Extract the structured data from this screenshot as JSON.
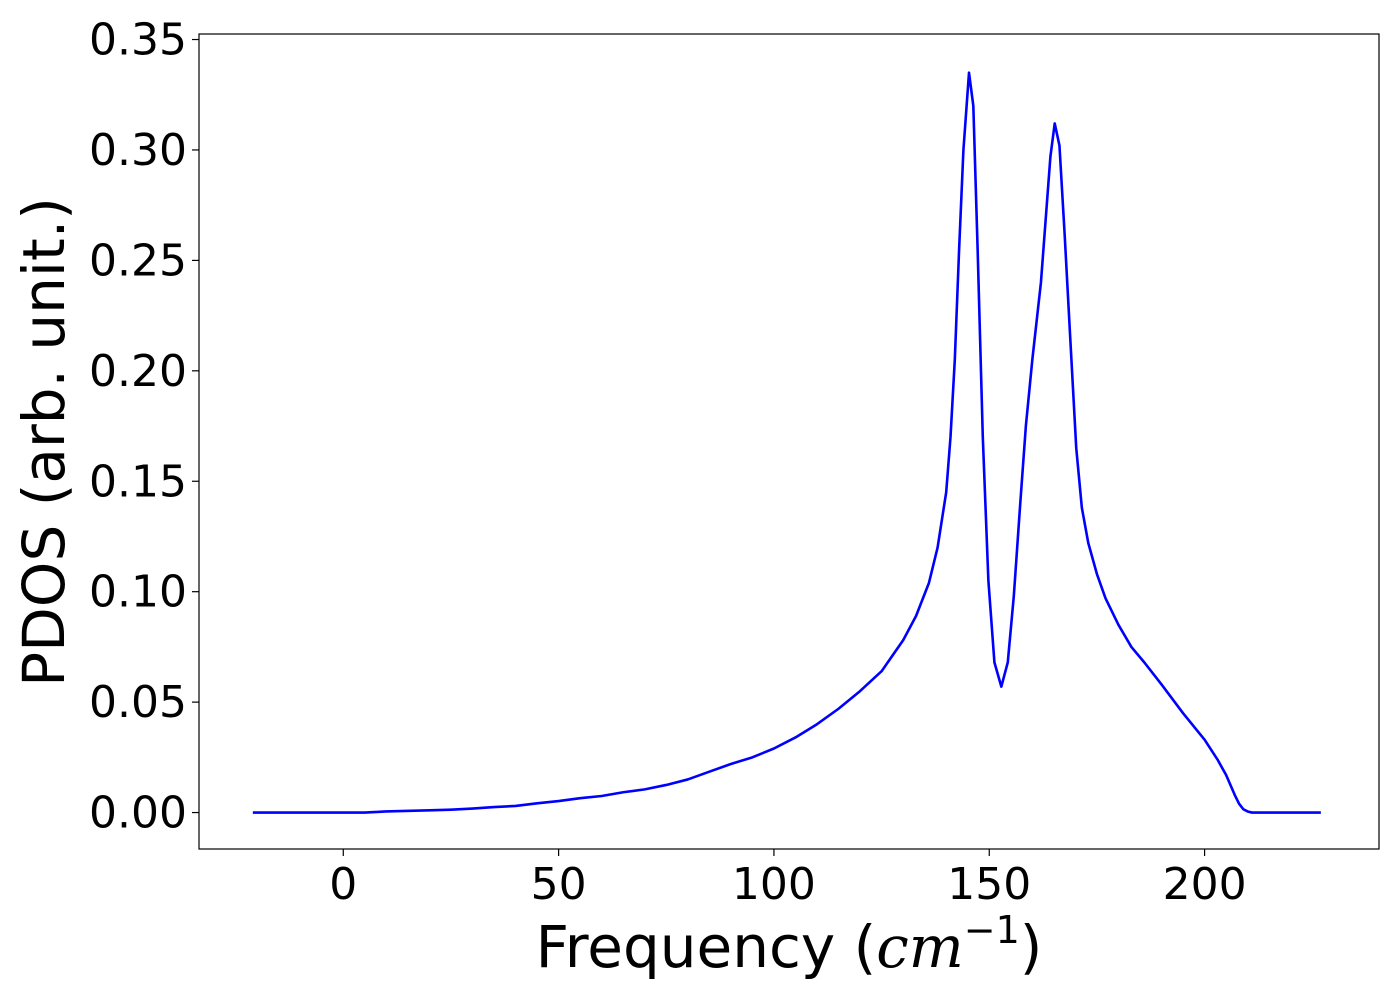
{
  "chart_data": {
    "type": "line",
    "xlabel": "Frequency (cm⁻¹)",
    "xlabel_parts": {
      "prefix": "Frequency (",
      "unit": "cm",
      "exponent": "−1",
      "suffix": ")"
    },
    "ylabel": "PDOS (arb. unit.)",
    "xlim": [
      -33.5,
      240.5
    ],
    "ylim": [
      -0.0165,
      0.3525
    ],
    "xticks": [
      0,
      50,
      100,
      150,
      200
    ],
    "xtick_labels": [
      "0",
      "50",
      "100",
      "150",
      "200"
    ],
    "yticks": [
      0.0,
      0.05,
      0.1,
      0.15,
      0.2,
      0.25,
      0.3,
      0.35
    ],
    "ytick_labels": [
      "0.00",
      "0.05",
      "0.10",
      "0.15",
      "0.20",
      "0.25",
      "0.30",
      "0.35"
    ],
    "grid": false,
    "line_color": "#0000ff",
    "series": [
      {
        "x": [
          -21,
          -10,
          0,
          5,
          10,
          20,
          25,
          30,
          35,
          40,
          45,
          50,
          55,
          60,
          65,
          70,
          75,
          80,
          85,
          90,
          95,
          100,
          105,
          110,
          115,
          120,
          125,
          130,
          133,
          136,
          138,
          140,
          141,
          142,
          143,
          144,
          145.3,
          146.3,
          147.3,
          148.5,
          149.8,
          151.2,
          152.8,
          154.3,
          155.7,
          157.2,
          158.5,
          160,
          162,
          164.2,
          165.2,
          166.3,
          167.5,
          168.8,
          170.2,
          171.5,
          173,
          175,
          177,
          180,
          183,
          186,
          190,
          195,
          200,
          203,
          205,
          207,
          208,
          209,
          210,
          211,
          212,
          215,
          220,
          227
        ],
        "y": [
          0.0,
          0.0,
          0.0,
          0.0,
          0.0005,
          0.001,
          0.0013,
          0.0018,
          0.0025,
          0.003,
          0.0042,
          0.0052,
          0.0065,
          0.0075,
          0.0092,
          0.0105,
          0.0125,
          0.015,
          0.0185,
          0.022,
          0.025,
          0.029,
          0.034,
          0.04,
          0.047,
          0.055,
          0.064,
          0.078,
          0.089,
          0.104,
          0.12,
          0.145,
          0.17,
          0.205,
          0.255,
          0.3,
          0.335,
          0.32,
          0.255,
          0.17,
          0.105,
          0.068,
          0.057,
          0.068,
          0.098,
          0.14,
          0.175,
          0.205,
          0.24,
          0.297,
          0.312,
          0.302,
          0.262,
          0.215,
          0.165,
          0.138,
          0.122,
          0.108,
          0.097,
          0.085,
          0.075,
          0.068,
          0.058,
          0.045,
          0.033,
          0.024,
          0.017,
          0.008,
          0.004,
          0.0015,
          0.0005,
          0.0,
          0.0,
          0.0,
          0.0,
          0.0
        ]
      }
    ]
  }
}
